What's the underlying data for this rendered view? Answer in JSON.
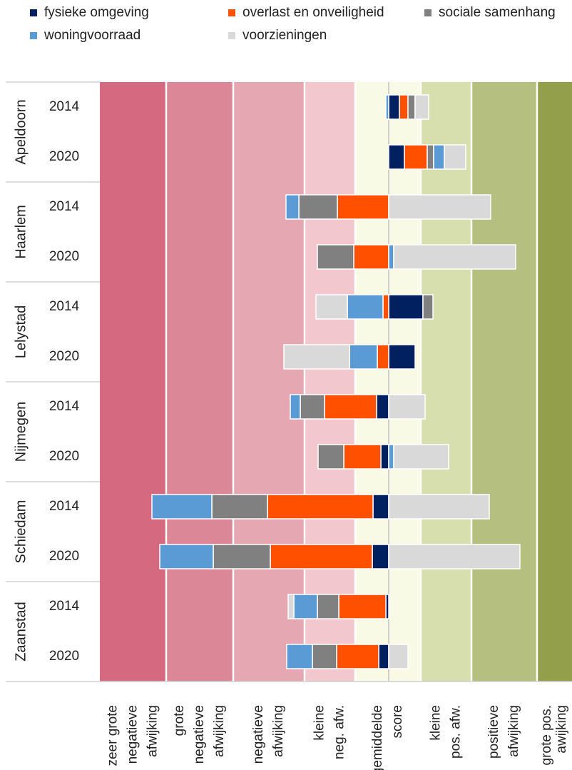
{
  "chart_data": {
    "type": "diverging-stacked-bar",
    "legend": "top",
    "xlim": [
      -4.05,
      2.57
    ],
    "groups": [
      {
        "name": "Apeldoorn",
        "years": [
          "2014",
          "2020"
        ]
      },
      {
        "name": "Haarlem",
        "years": [
          "2014",
          "2020"
        ]
      },
      {
        "name": "Lelystad",
        "years": [
          "2014",
          "2020"
        ]
      },
      {
        "name": "Nijmegen",
        "years": [
          "2014",
          "2020"
        ]
      },
      {
        "name": "Schiedam",
        "years": [
          "2014",
          "2020"
        ]
      },
      {
        "name": "Zaanstad",
        "years": [
          "2014",
          "2020"
        ]
      }
    ],
    "series": [
      {
        "name": "fysieke omgeving",
        "color": "#002060",
        "values": [
          0.15,
          0.22,
          0,
          0,
          0.48,
          0.37,
          -0.17,
          -0.11,
          -0.22,
          -0.23,
          -0.04,
          -0.14
        ]
      },
      {
        "name": "overlast en onveiligheid",
        "color": "#ff5000",
        "values": [
          0.12,
          0.32,
          -0.72,
          -0.49,
          -0.08,
          -0.16,
          -0.73,
          -0.52,
          -1.48,
          -1.43,
          -0.66,
          -0.59
        ]
      },
      {
        "name": "sociale samenhang",
        "color": "#808080",
        "values": [
          0.1,
          0.09,
          -0.54,
          -0.51,
          0.14,
          0,
          -0.34,
          -0.36,
          -0.78,
          -0.8,
          -0.3,
          -0.34
        ]
      },
      {
        "name": "woningvoorraad",
        "color": "#5b9bd5",
        "values": [
          -0.04,
          0.15,
          -0.18,
          0.07,
          -0.5,
          -0.39,
          -0.14,
          0.07,
          -0.84,
          -0.75,
          -0.33,
          -0.36
        ]
      },
      {
        "name": "voorzieningen",
        "color": "#d9d9d9",
        "values": [
          0.19,
          0.3,
          1.43,
          1.71,
          -0.44,
          -0.92,
          0.51,
          0.77,
          1.41,
          1.84,
          -0.08,
          0.27
        ]
      }
    ],
    "bands": [
      {
        "from": -4.05,
        "to": -3.12,
        "color": "#d4697f",
        "lines": [
          "zeer grote",
          "negatieve",
          "afwijking"
        ]
      },
      {
        "from": -3.12,
        "to": -2.18,
        "color": "#dc8797",
        "lines": [
          "grote",
          "negatieve",
          "afwijking"
        ]
      },
      {
        "from": -2.18,
        "to": -1.18,
        "color": "#e5a8b3",
        "lines": [
          "negatieve",
          "afwijking"
        ]
      },
      {
        "from": -1.18,
        "to": -0.47,
        "color": "#f2c7ce",
        "lines": [
          "kleine",
          "neg. afw."
        ]
      },
      {
        "from": -0.47,
        "to": 0.45,
        "color": "#f8fae6",
        "lines": [
          "gemiddelde",
          "score"
        ]
      },
      {
        "from": 0.45,
        "to": 1.16,
        "color": "#d7dfae",
        "lines": [
          "kleine",
          "pos. afw."
        ]
      },
      {
        "from": 1.16,
        "to": 2.08,
        "color": "#b5bf7f",
        "lines": [
          "positieve",
          "afwijking"
        ]
      },
      {
        "from": 2.08,
        "to": 2.57,
        "color": "#939f4a",
        "lines": [
          "grote pos.",
          "awijking"
        ]
      }
    ]
  }
}
